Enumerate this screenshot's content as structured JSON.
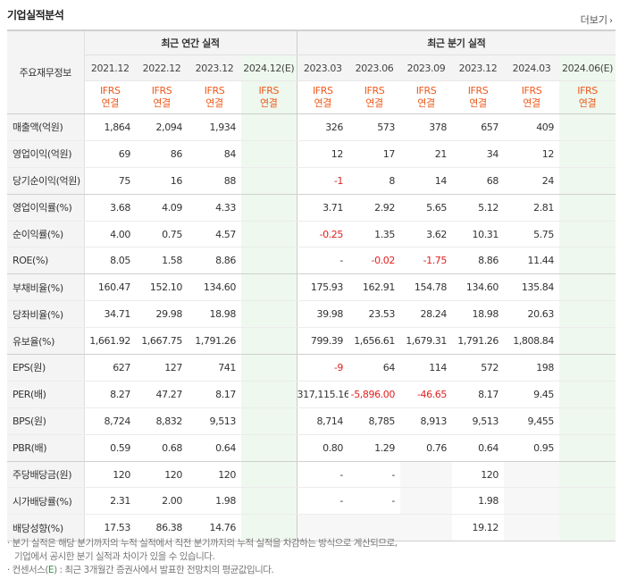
{
  "title": "기업실적분석",
  "more_label": "더보기",
  "label_header": "주요재무정보",
  "group_annual": "최근 연간 실적",
  "group_quarter": "최근 분기 실적",
  "annual_periods": [
    "2021.12",
    "2022.12",
    "2023.12",
    "2024.12(E)"
  ],
  "quarter_periods": [
    "2023.03",
    "2023.06",
    "2023.09",
    "2023.12",
    "2024.03",
    "2024.06(E)"
  ],
  "ifrs_top": "IFRS",
  "ifrs_bottom": "연결",
  "rows": [
    {
      "label": "매출액(억원)",
      "values": [
        "1,864",
        "2,094",
        "1,934",
        "",
        "326",
        "573",
        "378",
        "657",
        "409",
        ""
      ]
    },
    {
      "label": "영업이익(억원)",
      "values": [
        "69",
        "86",
        "84",
        "",
        "12",
        "17",
        "21",
        "34",
        "12",
        ""
      ]
    },
    {
      "label": "당기순이익(억원)",
      "values": [
        "75",
        "16",
        "88",
        "",
        "-1",
        "8",
        "14",
        "68",
        "24",
        ""
      ]
    },
    {
      "label": "영업이익률(%)",
      "values": [
        "3.68",
        "4.09",
        "4.33",
        "",
        "3.71",
        "2.92",
        "5.65",
        "5.12",
        "2.81",
        ""
      ]
    },
    {
      "label": "순이익률(%)",
      "values": [
        "4.00",
        "0.75",
        "4.57",
        "",
        "-0.25",
        "1.35",
        "3.62",
        "10.31",
        "5.75",
        ""
      ]
    },
    {
      "label": "ROE(%)",
      "values": [
        "8.05",
        "1.58",
        "8.86",
        "",
        "-",
        "-0.02",
        "-1.75",
        "8.86",
        "11.44",
        ""
      ]
    },
    {
      "label": "부채비율(%)",
      "values": [
        "160.47",
        "152.10",
        "134.60",
        "",
        "175.93",
        "162.91",
        "154.78",
        "134.60",
        "135.84",
        ""
      ]
    },
    {
      "label": "당좌비율(%)",
      "values": [
        "34.71",
        "29.98",
        "18.98",
        "",
        "39.98",
        "23.53",
        "28.24",
        "18.98",
        "20.63",
        ""
      ]
    },
    {
      "label": "유보율(%)",
      "values": [
        "1,661.92",
        "1,667.75",
        "1,791.26",
        "",
        "799.39",
        "1,656.61",
        "1,679.31",
        "1,791.26",
        "1,808.84",
        ""
      ]
    },
    {
      "label": "EPS(원)",
      "values": [
        "627",
        "127",
        "741",
        "",
        "-9",
        "64",
        "114",
        "572",
        "198",
        ""
      ]
    },
    {
      "label": "PER(배)",
      "values": [
        "8.27",
        "47.27",
        "8.17",
        "",
        "317,115.16",
        "-5,896.00",
        "-46.65",
        "8.17",
        "9.45",
        ""
      ]
    },
    {
      "label": "BPS(원)",
      "values": [
        "8,724",
        "8,832",
        "9,513",
        "",
        "8,714",
        "8,785",
        "8,913",
        "9,513",
        "9,455",
        ""
      ]
    },
    {
      "label": "PBR(배)",
      "values": [
        "0.59",
        "0.68",
        "0.64",
        "",
        "0.80",
        "1.29",
        "0.76",
        "0.64",
        "0.95",
        ""
      ]
    },
    {
      "label": "주당배당금(원)",
      "values": [
        "120",
        "120",
        "120",
        "",
        "-",
        "-",
        "",
        "120",
        "",
        ""
      ]
    },
    {
      "label": "시가배당률(%)",
      "values": [
        "2.31",
        "2.00",
        "1.98",
        "",
        "-",
        "-",
        "",
        "1.98",
        "",
        ""
      ]
    },
    {
      "label": "배당성향(%)",
      "values": [
        "17.53",
        "86.38",
        "14.76",
        "",
        "",
        "",
        "",
        "19.12",
        "",
        ""
      ]
    }
  ],
  "notes": [
    "· 분기 실적은 해당 분기까지의 누적 실적에서 직전 분기까지의 누적 실적을 차감하는 방식으로 계산되므로,",
    "  기업에서 공시한 분기 실적과 차이가 있을 수 있습니다."
  ],
  "note3_prefix": "· 컨센서스(",
  "note3_e": "E",
  "note3_suffix": ") : 최근 3개월간 증권사에서 발표한 전망치의 평균값입니다.",
  "colors": {
    "ifrs": "#ee5a1c",
    "negative": "#e02020",
    "estimate_bg": "#eef8ee",
    "header_bg": "#f4f4f4"
  }
}
